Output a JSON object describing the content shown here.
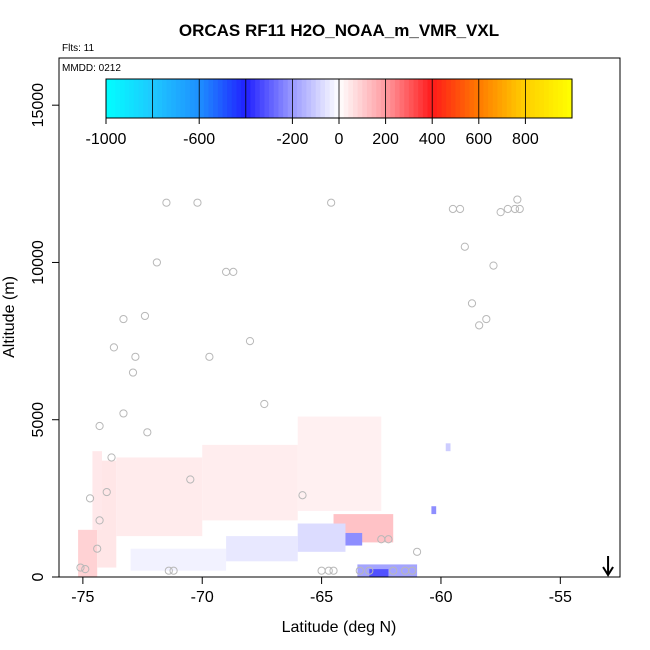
{
  "chart_data": {
    "type": "heatmap",
    "title": "ORCAS RF11 H2O_NOAA_m_VMR_VXL",
    "flts_label": "Flts: 11",
    "mmdd_label": "MMDD: 0212",
    "xlabel": "Latitude (deg N)",
    "ylabel": "Altitude (m)",
    "xlim": [
      -76,
      -52.5
    ],
    "ylim": [
      0,
      16500
    ],
    "x_ticks": [
      -75,
      -70,
      -65,
      -60,
      -55
    ],
    "x_tick_labels": [
      "-75",
      "-70",
      "-65",
      "-60",
      "-55"
    ],
    "y_ticks": [
      0,
      5000,
      10000,
      15000
    ],
    "y_tick_labels": [
      "0",
      "5000",
      "10000",
      "15000"
    ],
    "colorbar": {
      "min": -1000,
      "max": 1000,
      "ticks": [
        -1000,
        -600,
        -200,
        0,
        200,
        400,
        600,
        800
      ],
      "tick_labels": [
        "-1000",
        "-600",
        "-200",
        "0",
        "200",
        "400",
        "600",
        "800"
      ],
      "stops": [
        {
          "value": -1000,
          "color": "#00ffff"
        },
        {
          "value": -800,
          "color": "#1ec8ff"
        },
        {
          "value": -600,
          "color": "#1e90ff"
        },
        {
          "value": -400,
          "color": "#2020ff"
        },
        {
          "value": -200,
          "color": "#9a9aff"
        },
        {
          "value": 0,
          "color": "#ffffff"
        },
        {
          "value": 200,
          "color": "#ff9aa0"
        },
        {
          "value": 400,
          "color": "#ff1a1a"
        },
        {
          "value": 600,
          "color": "#ff7a00"
        },
        {
          "value": 800,
          "color": "#ffd000"
        },
        {
          "value": 1000,
          "color": "#ffff00"
        }
      ]
    },
    "cells": [
      {
        "lat0": -75.2,
        "lat1": -74.4,
        "alt0": 0,
        "alt1": 1500,
        "value": 90
      },
      {
        "lat0": -74.4,
        "lat1": -73.6,
        "alt0": 300,
        "alt1": 3700,
        "value": 50
      },
      {
        "lat0": -74.6,
        "lat1": -74.2,
        "alt0": 1500,
        "alt1": 4000,
        "value": 45
      },
      {
        "lat0": -73.6,
        "lat1": -70.0,
        "alt0": 1300,
        "alt1": 3800,
        "value": 40
      },
      {
        "lat0": -70.0,
        "lat1": -66.0,
        "alt0": 1800,
        "alt1": 4200,
        "value": 35
      },
      {
        "lat0": -66.0,
        "lat1": -62.5,
        "alt0": 2100,
        "alt1": 5100,
        "value": 30
      },
      {
        "lat0": -64.5,
        "lat1": -62.0,
        "alt0": 1100,
        "alt1": 2000,
        "value": 120
      },
      {
        "lat0": -73.0,
        "lat1": -69.0,
        "alt0": 200,
        "alt1": 900,
        "value": -25
      },
      {
        "lat0": -69.0,
        "lat1": -66.0,
        "alt0": 500,
        "alt1": 1300,
        "value": -45
      },
      {
        "lat0": -66.0,
        "lat1": -64.0,
        "alt0": 800,
        "alt1": 1700,
        "value": -70
      },
      {
        "lat0": -64.0,
        "lat1": -63.3,
        "alt0": 1000,
        "alt1": 1400,
        "value": -220
      },
      {
        "lat0": -63.5,
        "lat1": -61.0,
        "alt0": 0,
        "alt1": 400,
        "value": -180
      },
      {
        "lat0": -63.0,
        "lat1": -62.2,
        "alt0": 0,
        "alt1": 250,
        "value": -320
      },
      {
        "lat0": -60.4,
        "lat1": -60.2,
        "alt0": 2000,
        "alt1": 2250,
        "value": -220
      },
      {
        "lat0": -59.8,
        "lat1": -59.6,
        "alt0": 4000,
        "alt1": 4250,
        "value": -100
      }
    ],
    "flight_points": [
      [
        -75.1,
        300
      ],
      [
        -74.9,
        250
      ],
      [
        -74.7,
        2500
      ],
      [
        -74.4,
        900
      ],
      [
        -74.3,
        1800
      ],
      [
        -74.3,
        4800
      ],
      [
        -74.0,
        2700
      ],
      [
        -73.8,
        3800
      ],
      [
        -73.7,
        7300
      ],
      [
        -73.3,
        5200
      ],
      [
        -73.3,
        8200
      ],
      [
        -72.9,
        6500
      ],
      [
        -72.8,
        7000
      ],
      [
        -72.4,
        8300
      ],
      [
        -72.3,
        4600
      ],
      [
        -71.9,
        10000
      ],
      [
        -71.5,
        11900
      ],
      [
        -71.4,
        200
      ],
      [
        -71.2,
        200
      ],
      [
        -70.5,
        3100
      ],
      [
        -70.2,
        11900
      ],
      [
        -69.7,
        7000
      ],
      [
        -69.0,
        9700
      ],
      [
        -68.7,
        9700
      ],
      [
        -68.0,
        7500
      ],
      [
        -67.4,
        5500
      ],
      [
        -65.8,
        2600
      ],
      [
        -65.0,
        200
      ],
      [
        -64.7,
        200
      ],
      [
        -64.6,
        11900
      ],
      [
        -64.5,
        200
      ],
      [
        -63.4,
        200
      ],
      [
        -63.0,
        200
      ],
      [
        -62.5,
        1200
      ],
      [
        -62.2,
        1200
      ],
      [
        -62.0,
        200
      ],
      [
        -61.5,
        200
      ],
      [
        -61.2,
        200
      ],
      [
        -61.0,
        800
      ],
      [
        -59.5,
        11700
      ],
      [
        -59.2,
        11700
      ],
      [
        -59.0,
        10500
      ],
      [
        -58.7,
        8700
      ],
      [
        -58.4,
        8000
      ],
      [
        -58.1,
        8200
      ],
      [
        -57.8,
        9900
      ],
      [
        -57.5,
        11600
      ],
      [
        -57.2,
        11700
      ],
      [
        -56.9,
        11700
      ],
      [
        -56.8,
        12000
      ],
      [
        -56.7,
        11700
      ]
    ],
    "marker_arrow_lat": -53.0
  }
}
